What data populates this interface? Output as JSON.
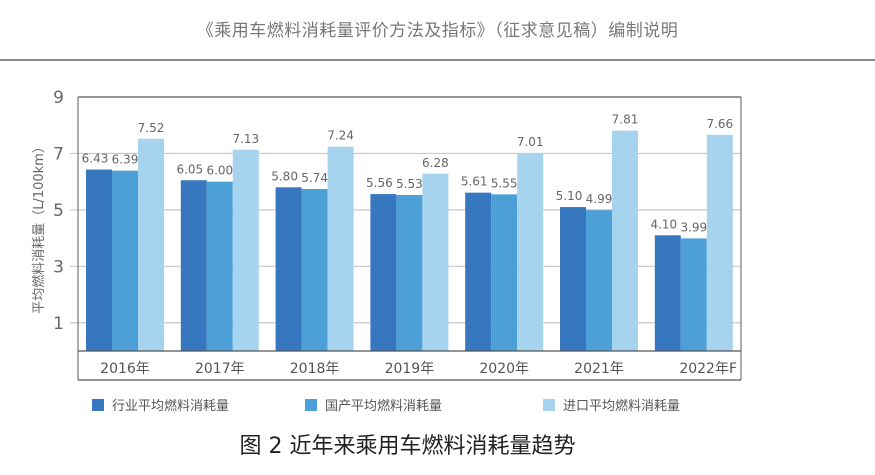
{
  "header": {
    "title": "《乘用车燃料消耗量评价方法及指标》（征求意见稿）编制说明"
  },
  "caption": "图 2 近年来乘用车燃料消耗量趋势",
  "chart_data": {
    "type": "bar",
    "title": "图 2 近年来乘用车燃料消耗量趋势",
    "xlabel": "",
    "ylabel": "平均燃料消耗量（L/100km）",
    "ylim": [
      0,
      9
    ],
    "yticks": [
      1,
      3,
      5,
      7,
      9
    ],
    "grid": true,
    "legend_position": "bottom",
    "categories": [
      "2016年",
      "2017年",
      "2018年",
      "2019年",
      "2020年",
      "2021年",
      "2022年F"
    ],
    "series": [
      {
        "name": "行业平均燃料消耗量",
        "color": "#3777c0",
        "values": [
          6.43,
          6.05,
          5.8,
          5.56,
          5.61,
          5.1,
          4.1
        ],
        "labels": [
          "6.43",
          "6.05",
          "5.80",
          "5.56",
          "5.61",
          "5.10",
          "4.10"
        ]
      },
      {
        "name": "国产平均燃料消耗量",
        "color": "#4d9fd8",
        "values": [
          6.39,
          6.0,
          5.74,
          5.53,
          5.55,
          4.99,
          3.99
        ],
        "labels": [
          "6.39",
          "6.00",
          "5.74",
          "5.53",
          "5.55",
          "4.99",
          "3.99"
        ]
      },
      {
        "name": "进口平均燃料消耗量",
        "color": "#a6d4ee",
        "values": [
          7.52,
          7.13,
          7.24,
          6.28,
          7.01,
          7.81,
          7.66
        ],
        "labels": [
          "7.52",
          "7.13",
          "7.24",
          "6.28",
          "7.01",
          "7.81",
          "7.66"
        ]
      }
    ]
  }
}
